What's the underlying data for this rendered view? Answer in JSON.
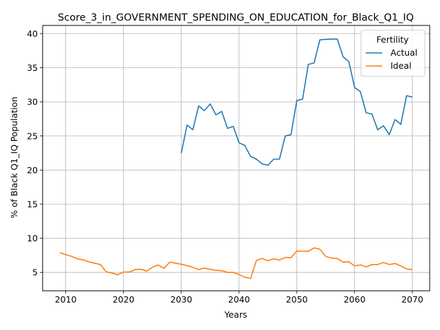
{
  "chart_data": {
    "type": "line",
    "title": "Score_3_in_GOVERNMENT_SPENDING_ON_EDUCATION_for_Black_Q1_IQ",
    "xlabel": "Years",
    "ylabel": "% of Black Q1_IQ Population",
    "xlim": [
      2006,
      2073
    ],
    "ylim": [
      2.3,
      41.2
    ],
    "xticks": [
      2010,
      2020,
      2030,
      2040,
      2050,
      2060,
      2070
    ],
    "yticks": [
      5,
      10,
      15,
      20,
      25,
      30,
      35,
      40
    ],
    "grid": true,
    "legend": {
      "title": "Fertility",
      "placement": "top-right"
    },
    "series": [
      {
        "name": "Actual",
        "color": "#1f77b4",
        "x": [
          2030,
          2031,
          2032,
          2033,
          2034,
          2035,
          2036,
          2037,
          2038,
          2039,
          2040,
          2041,
          2042,
          2043,
          2044,
          2045,
          2046,
          2047,
          2048,
          2049,
          2050,
          2051,
          2052,
          2053,
          2054,
          2055,
          2056,
          2057,
          2058,
          2059,
          2060,
          2061,
          2062,
          2063,
          2064,
          2065,
          2066,
          2067,
          2068,
          2069,
          2070
        ],
        "values": [
          22.5,
          26.6,
          25.9,
          29.4,
          28.7,
          29.7,
          28.1,
          28.6,
          26.1,
          26.4,
          24.0,
          23.6,
          22.0,
          21.6,
          20.9,
          20.7,
          21.6,
          21.6,
          25.0,
          25.2,
          30.2,
          30.4,
          35.5,
          35.7,
          39.1,
          39.15,
          39.2,
          39.2,
          36.6,
          35.9,
          32.1,
          31.5,
          28.4,
          28.2,
          25.9,
          26.5,
          25.2,
          27.4,
          26.7,
          30.9,
          30.7
        ]
      },
      {
        "name": "Ideal",
        "color": "#ff7f0e",
        "x": [
          2009,
          2010,
          2011,
          2012,
          2013,
          2014,
          2015,
          2016,
          2017,
          2018,
          2019,
          2020,
          2021,
          2022,
          2023,
          2024,
          2025,
          2026,
          2027,
          2028,
          2029,
          2030,
          2031,
          2032,
          2033,
          2034,
          2035,
          2036,
          2037,
          2038,
          2039,
          2040,
          2041,
          2042,
          2043,
          2044,
          2045,
          2046,
          2047,
          2048,
          2049,
          2050,
          2051,
          2052,
          2053,
          2054,
          2055,
          2056,
          2057,
          2058,
          2059,
          2060,
          2061,
          2062,
          2063,
          2064,
          2065,
          2066,
          2067,
          2068,
          2069,
          2070
        ],
        "values": [
          7.9,
          7.6,
          7.35,
          7.0,
          6.85,
          6.55,
          6.35,
          6.15,
          5.1,
          4.9,
          4.65,
          5.05,
          5.05,
          5.4,
          5.45,
          5.2,
          5.75,
          6.1,
          5.6,
          6.5,
          6.35,
          6.2,
          6.0,
          5.75,
          5.4,
          5.65,
          5.45,
          5.3,
          5.25,
          5.0,
          5.0,
          4.7,
          4.3,
          4.1,
          6.75,
          7.05,
          6.7,
          7.0,
          6.8,
          7.2,
          7.15,
          8.15,
          8.1,
          8.1,
          8.6,
          8.4,
          7.35,
          7.1,
          7.05,
          6.5,
          6.55,
          5.95,
          6.1,
          5.8,
          6.15,
          6.15,
          6.45,
          6.15,
          6.3,
          5.95,
          5.5,
          5.4
        ]
      }
    ]
  }
}
